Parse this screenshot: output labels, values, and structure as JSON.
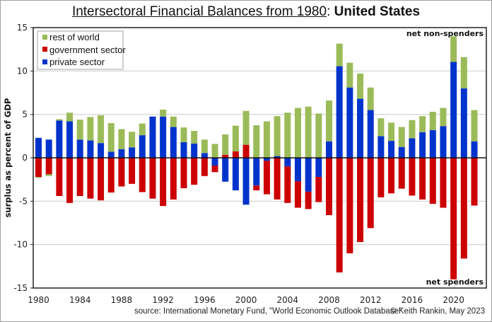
{
  "chart_data": {
    "type": "bar",
    "stacked": true,
    "title_main": "Intersectoral Financial Balances from 1980",
    "title_sep": ": ",
    "title_country": "United States",
    "ylabel": "surplus as percent of GDP",
    "ylim": [
      -15,
      15
    ],
    "yticks": [
      15,
      10,
      5,
      0,
      -5,
      -10,
      -15
    ],
    "yticks_labels": [
      "15",
      "10",
      "5",
      "0",
      "-5",
      "-10",
      "-15"
    ],
    "xticks": [
      "1980",
      "1984",
      "1988",
      "1992",
      "1996",
      "2000",
      "2004",
      "2008",
      "2012",
      "2016",
      "2020"
    ],
    "grid": true,
    "legend_position": "top-left",
    "annotation_top": "net non-spenders",
    "annotation_bottom": "net spenders",
    "years": [
      1980,
      1981,
      1982,
      1983,
      1984,
      1985,
      1986,
      1987,
      1988,
      1989,
      1990,
      1991,
      1992,
      1993,
      1994,
      1995,
      1996,
      1997,
      1998,
      1999,
      2000,
      2001,
      2002,
      2003,
      2004,
      2005,
      2006,
      2007,
      2008,
      2009,
      2010,
      2011,
      2012,
      2013,
      2014,
      2015,
      2016,
      2017,
      2018,
      2019,
      2020,
      2021,
      2022
    ],
    "series": [
      {
        "name": "rest of world",
        "color": "#9bbb59",
        "values": [
          -0.1,
          -0.2,
          0.15,
          1.0,
          2.3,
          2.7,
          3.2,
          3.3,
          2.3,
          1.8,
          1.35,
          0.0,
          0.8,
          1.2,
          1.7,
          1.45,
          1.55,
          1.6,
          2.35,
          2.95,
          3.9,
          3.75,
          4.2,
          4.6,
          5.2,
          5.75,
          5.9,
          5.1,
          4.7,
          2.6,
          2.85,
          2.9,
          2.6,
          2.05,
          2.1,
          2.3,
          2.1,
          1.85,
          2.1,
          2.1,
          2.95,
          3.6,
          3.6
        ]
      },
      {
        "name": "government sector",
        "color": "#cc0000",
        "values": [
          -2.2,
          -1.9,
          -4.4,
          -5.2,
          -4.4,
          -4.7,
          -4.9,
          -4.0,
          -3.3,
          -3.0,
          -3.95,
          -4.7,
          -5.55,
          -4.8,
          -3.5,
          -3.1,
          -2.1,
          -0.75,
          0.35,
          0.75,
          1.5,
          -0.55,
          -3.85,
          -4.8,
          -4.2,
          -3.05,
          -2.0,
          -2.9,
          -6.6,
          -13.2,
          -11.0,
          -9.7,
          -8.1,
          -4.55,
          -4.1,
          -3.55,
          -4.35,
          -4.8,
          -5.3,
          -5.75,
          -14.0,
          -11.6,
          -5.5
        ]
      },
      {
        "name": "private sector",
        "color": "#0033cc",
        "values": [
          2.3,
          2.1,
          4.3,
          4.2,
          2.1,
          2.0,
          1.7,
          0.7,
          1.0,
          1.2,
          2.6,
          4.75,
          4.75,
          3.55,
          1.8,
          1.65,
          0.55,
          -0.9,
          -2.75,
          -3.75,
          -5.4,
          -3.2,
          -0.35,
          0.2,
          -1.0,
          -2.7,
          -3.9,
          -2.2,
          1.9,
          10.55,
          8.1,
          6.8,
          5.5,
          2.5,
          1.95,
          1.25,
          2.25,
          2.95,
          3.2,
          3.65,
          11.05,
          8.0,
          1.9
        ]
      }
    ]
  },
  "footer": {
    "source": "source:  International Monetary Fund, \"World Economic Outlook Database\"",
    "credit": "© Keith Rankin, May 2023"
  }
}
